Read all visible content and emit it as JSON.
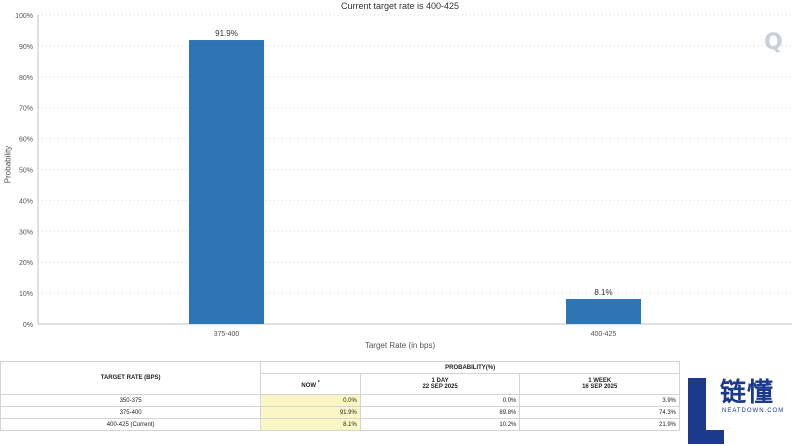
{
  "chart_data": {
    "type": "bar",
    "title": "Current target rate is 400-425",
    "xlabel": "Target Rate (in bps)",
    "ylabel": "Probability",
    "categories": [
      "375-400",
      "400-425"
    ],
    "values": [
      91.9,
      8.1
    ],
    "value_labels": [
      "91.9%",
      "8.1%"
    ],
    "ylim": [
      0,
      100
    ],
    "yticks": [
      "0%",
      "10%",
      "20%",
      "30%",
      "40%",
      "50%",
      "60%",
      "70%",
      "80%",
      "90%",
      "100%"
    ],
    "grid": true,
    "bar_color": "#2e75b6"
  },
  "watermark": "Q",
  "table": {
    "header_rate": "TARGET RATE (BPS)",
    "header_prob": "PROBABILITY(%)",
    "col_now": "NOW",
    "col_now_mark": "*",
    "col_1day": "1 DAY",
    "col_1day_date": "22 SEP 2025",
    "col_1week": "1 WEEK",
    "col_1week_date": "16 SEP 2025",
    "rows": [
      {
        "rate": "350-375",
        "now": "0.0%",
        "day": "0.0%",
        "week": "3.9%"
      },
      {
        "rate": "375-400",
        "now": "91.9%",
        "day": "89.8%",
        "week": "74.3%"
      },
      {
        "rate": "400-425 (Current)",
        "now": "8.1%",
        "day": "10.2%",
        "week": "21.9%"
      }
    ]
  },
  "logo": {
    "text": "链懂",
    "sub": "NEATDOWN.COM"
  }
}
